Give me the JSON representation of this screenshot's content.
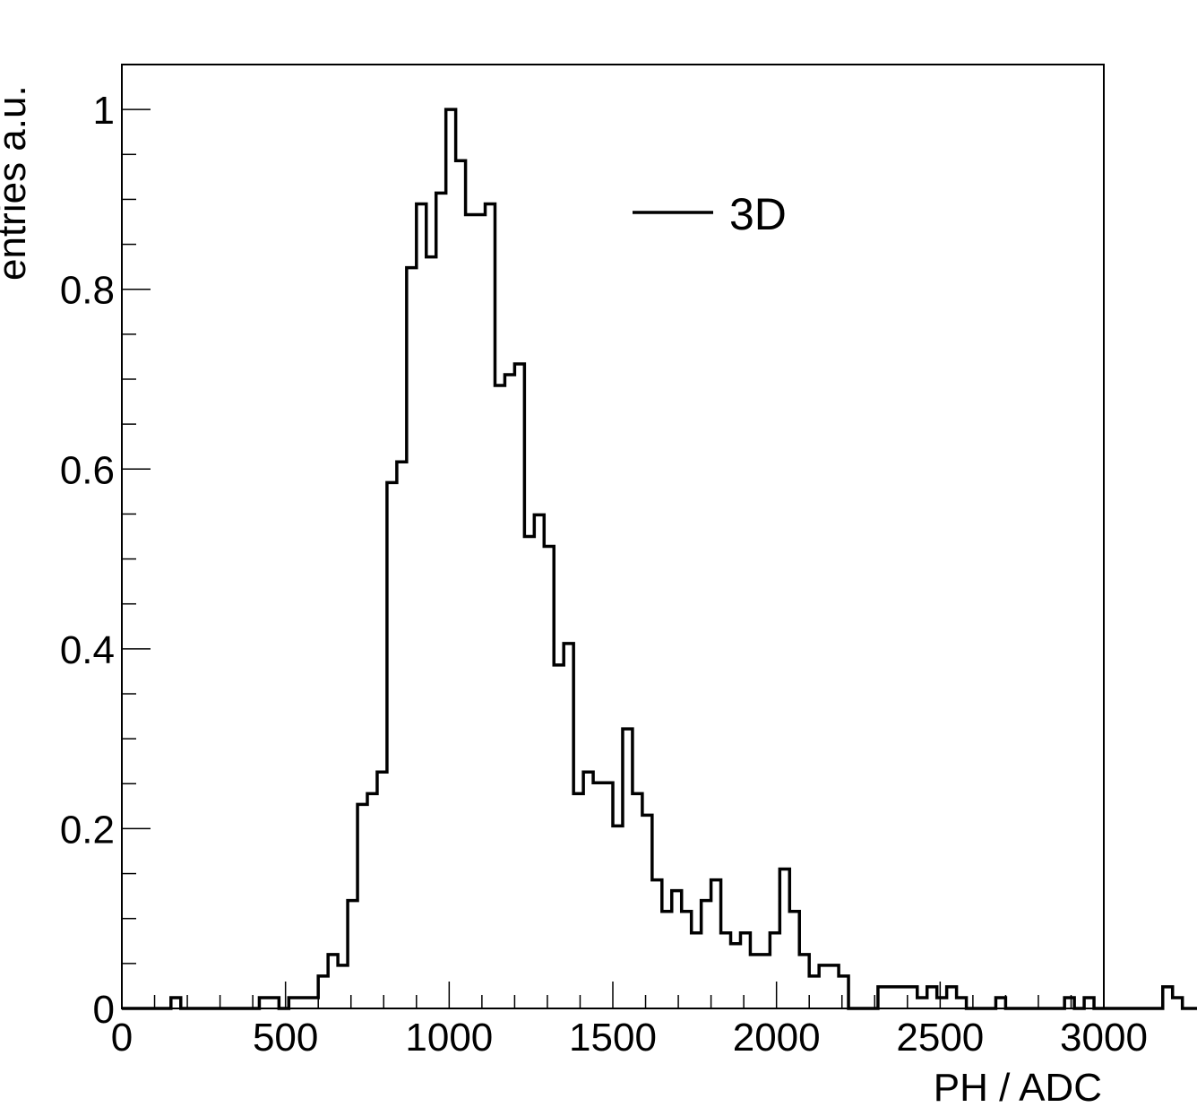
{
  "chart_data": {
    "type": "step",
    "xlabel": "PH / ADC",
    "ylabel": "entries a.u.",
    "xlim": [
      0,
      3000
    ],
    "ylim": [
      0,
      1.05
    ],
    "x_ticks": [
      "0",
      "500",
      "1000",
      "1500",
      "2000",
      "2500",
      "3000"
    ],
    "y_ticks": [
      "0",
      "0.2",
      "0.4",
      "0.6",
      "0.8",
      "1"
    ],
    "legend": {
      "label": "3D",
      "placement": "top-center"
    },
    "series": [
      {
        "name": "3D",
        "bin_width": 30,
        "bin_start": 0,
        "values": [
          0,
          0,
          0,
          0,
          0,
          0.012,
          0,
          0,
          0,
          0,
          0,
          0,
          0,
          0,
          0.012,
          0.012,
          0,
          0.012,
          0.012,
          0.012,
          0.036,
          0.06,
          0.048,
          0.12,
          0.227,
          0.239,
          0.263,
          0.585,
          0.608,
          0.824,
          0.895,
          0.836,
          0.907,
          1.0,
          0.943,
          0.883,
          0.883,
          0.895,
          0.693,
          0.705,
          0.717,
          0.525,
          0.549,
          0.514,
          0.382,
          0.406,
          0.239,
          0.263,
          0.251,
          0.251,
          0.203,
          0.311,
          0.239,
          0.215,
          0.143,
          0.108,
          0.131,
          0.108,
          0.084,
          0.12,
          0.143,
          0.084,
          0.072,
          0.084,
          0.06,
          0.06,
          0.084,
          0.155,
          0.108,
          0.06,
          0.036,
          0.048,
          0.048,
          0.036,
          0,
          0,
          0,
          0.024,
          0.024,
          0.024,
          0.024,
          0.012,
          0.024,
          0.012,
          0.024,
          0.012,
          0,
          0,
          0,
          0.012,
          0,
          0,
          0,
          0,
          0,
          0,
          0.012,
          0,
          0.012,
          0,
          0,
          0,
          0,
          0,
          0,
          0,
          0.024,
          0.012,
          0,
          0
        ]
      }
    ]
  }
}
